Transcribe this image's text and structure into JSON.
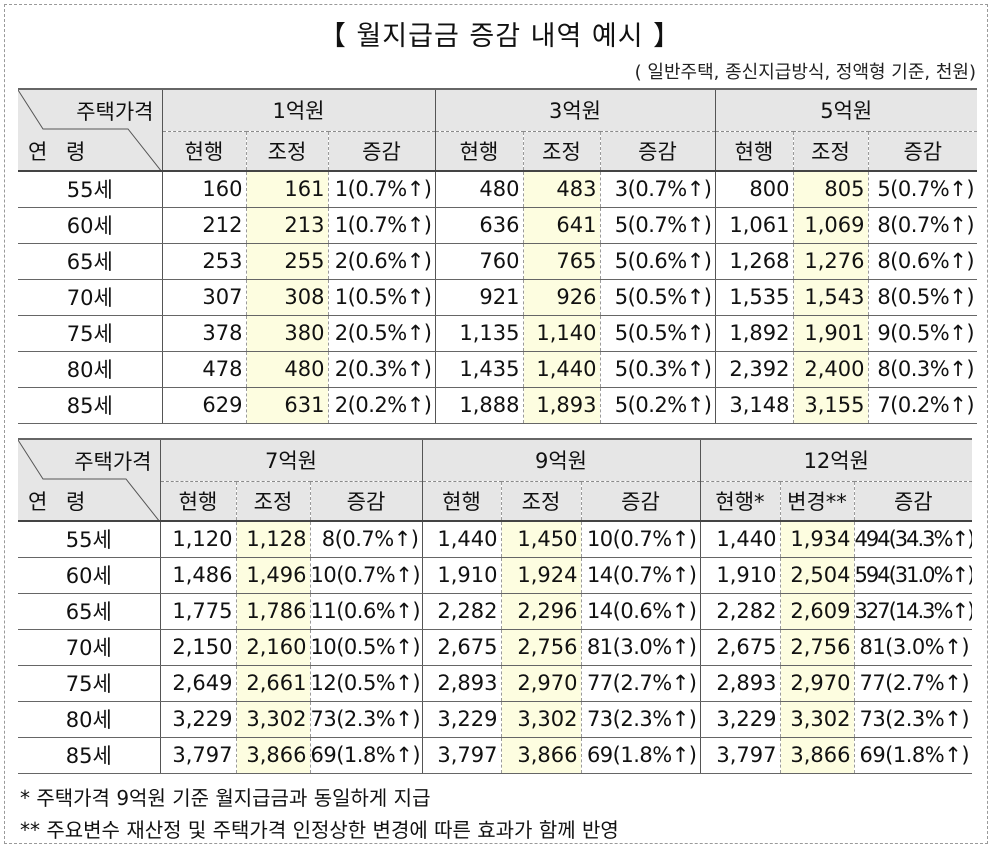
{
  "title": "【 월지급금 증감 내역 예시 】",
  "subtitle": "( 일반주택, 종신지급방식, 정액형 기준, 천원)",
  "corner": {
    "top_label": "주택가격",
    "bottom_label": "연 령"
  },
  "tables": [
    {
      "groups": [
        {
          "label": "1억원",
          "cols": [
            "현행",
            "조정",
            "증감"
          ]
        },
        {
          "label": "3억원",
          "cols": [
            "현행",
            "조정",
            "증감"
          ]
        },
        {
          "label": "5억원",
          "cols": [
            "현행",
            "조정",
            "증감"
          ]
        }
      ],
      "rows": [
        {
          "age": "55세",
          "cells": [
            "160",
            "161",
            "1(0.7%↑)",
            "480",
            "483",
            "3(0.7%↑)",
            "800",
            "805",
            "5(0.7%↑)"
          ]
        },
        {
          "age": "60세",
          "cells": [
            "212",
            "213",
            "1(0.7%↑)",
            "636",
            "641",
            "5(0.7%↑)",
            "1,061",
            "1,069",
            "8(0.7%↑)"
          ]
        },
        {
          "age": "65세",
          "cells": [
            "253",
            "255",
            "2(0.6%↑)",
            "760",
            "765",
            "5(0.6%↑)",
            "1,268",
            "1,276",
            "8(0.6%↑)"
          ]
        },
        {
          "age": "70세",
          "cells": [
            "307",
            "308",
            "1(0.5%↑)",
            "921",
            "926",
            "5(0.5%↑)",
            "1,535",
            "1,543",
            "8(0.5%↑)"
          ]
        },
        {
          "age": "75세",
          "cells": [
            "378",
            "380",
            "2(0.5%↑)",
            "1,135",
            "1,140",
            "5(0.5%↑)",
            "1,892",
            "1,901",
            "9(0.5%↑)"
          ]
        },
        {
          "age": "80세",
          "cells": [
            "478",
            "480",
            "2(0.3%↑)",
            "1,435",
            "1,440",
            "5(0.3%↑)",
            "2,392",
            "2,400",
            "8(0.3%↑)"
          ]
        },
        {
          "age": "85세",
          "cells": [
            "629",
            "631",
            "2(0.2%↑)",
            "1,888",
            "1,893",
            "5(0.2%↑)",
            "3,148",
            "3,155",
            "7(0.2%↑)"
          ]
        }
      ]
    },
    {
      "groups": [
        {
          "label": "7억원",
          "cols": [
            "현행",
            "조정",
            "증감"
          ]
        },
        {
          "label": "9억원",
          "cols": [
            "현행",
            "조정",
            "증감"
          ]
        },
        {
          "label": "12억원",
          "cols": [
            "현행*",
            "변경**",
            "증감"
          ]
        }
      ],
      "rows": [
        {
          "age": "55세",
          "cells": [
            "1,120",
            "1,128",
            "8(0.7%↑)",
            "1,440",
            "1,450",
            "10(0.7%↑)",
            "1,440",
            "1,934",
            "494(34.3%↑)"
          ]
        },
        {
          "age": "60세",
          "cells": [
            "1,486",
            "1,496",
            "10(0.7%↑)",
            "1,910",
            "1,924",
            "14(0.7%↑)",
            "1,910",
            "2,504",
            "594(31.0%↑)"
          ]
        },
        {
          "age": "65세",
          "cells": [
            "1,775",
            "1,786",
            "11(0.6%↑)",
            "2,282",
            "2,296",
            "14(0.6%↑)",
            "2,282",
            "2,609",
            "327(14.3%↑)"
          ]
        },
        {
          "age": "70세",
          "cells": [
            "2,150",
            "2,160",
            "10(0.5%↑)",
            "2,675",
            "2,756",
            "81(3.0%↑)",
            "2,675",
            "2,756",
            "81(3.0%↑)"
          ]
        },
        {
          "age": "75세",
          "cells": [
            "2,649",
            "2,661",
            "12(0.5%↑)",
            "2,893",
            "2,970",
            "77(2.7%↑)",
            "2,893",
            "2,970",
            "77(2.7%↑)"
          ]
        },
        {
          "age": "80세",
          "cells": [
            "3,229",
            "3,302",
            "73(2.3%↑)",
            "3,229",
            "3,302",
            "73(2.3%↑)",
            "3,229",
            "3,302",
            "73(2.3%↑)"
          ]
        },
        {
          "age": "85세",
          "cells": [
            "3,797",
            "3,866",
            "69(1.8%↑)",
            "3,797",
            "3,866",
            "69(1.8%↑)",
            "3,797",
            "3,866",
            "69(1.8%↑)"
          ]
        }
      ]
    }
  ],
  "notes": [
    "* 주택가격 9억원 기준 월지급금과 동일하게 지급",
    "** 주요변수 재산정 및 주택가격 인정상한 변경에 따른 효과가 함께 반영"
  ],
  "colors": {
    "header_bg": "#e6e6e6",
    "highlight_bg": "#fdfde0"
  }
}
